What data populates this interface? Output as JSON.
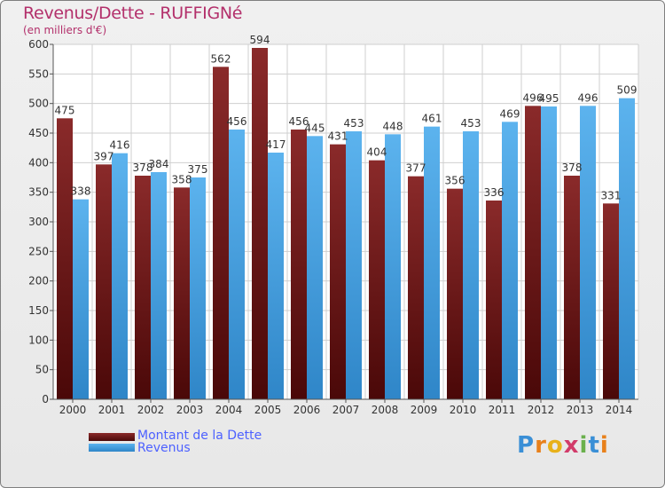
{
  "chart_data": {
    "type": "bar",
    "title": "Revenus/Dette - RUFFIGNé",
    "subtitle": "(en milliers d'€)",
    "xlabel": "",
    "ylabel": "",
    "ylim": [
      0,
      600
    ],
    "yticks": [
      0,
      50,
      100,
      150,
      200,
      250,
      300,
      350,
      400,
      450,
      500,
      550,
      600
    ],
    "grid": true,
    "categories": [
      "2000",
      "2001",
      "2002",
      "2003",
      "2004",
      "2005",
      "2006",
      "2007",
      "2008",
      "2009",
      "2010",
      "2011",
      "2012",
      "2013",
      "2014"
    ],
    "series": [
      {
        "name": "Montant de la Dette",
        "color": "#7a1f1f",
        "values": [
          475,
          397,
          378,
          358,
          562,
          594,
          456,
          431,
          404,
          377,
          356,
          336,
          496,
          378,
          331
        ],
        "labels": [
          "475",
          "397",
          "378",
          "358",
          "562",
          "594",
          "456",
          "431",
          "404",
          "377",
          "356",
          "336",
          "496",
          "378",
          "331"
        ]
      },
      {
        "name": "Revenus",
        "color": "#4aa3e2",
        "values": [
          338,
          416,
          384,
          375,
          456,
          417,
          445,
          453,
          448,
          461,
          453,
          469,
          495,
          496,
          509
        ],
        "labels": [
          "338",
          "416",
          "384",
          "375",
          "456",
          "417",
          "445",
          "453",
          "448",
          "461",
          "453",
          "469",
          "495",
          "496",
          "509"
        ]
      }
    ],
    "legend_position": "bottom-left"
  },
  "logo": {
    "letters": [
      "P",
      "r",
      "o",
      "x",
      "i",
      "t",
      "i"
    ],
    "colors": [
      "#3a8fd6",
      "#e8801a",
      "#e8b11a",
      "#d23b6a",
      "#6ab04c",
      "#3a8fd6",
      "#e8801a"
    ]
  },
  "title_color": "#b3306b",
  "legend_text_color": "#4d61ff"
}
